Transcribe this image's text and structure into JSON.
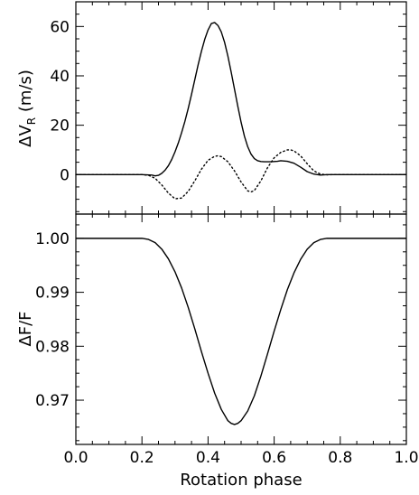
{
  "chart_data": [
    {
      "type": "line",
      "panel": "top",
      "ylabel": "ΔV",
      "ylabel_subscript": "R",
      "ylabel_unit": " (m/s)",
      "xlim": [
        0.0,
        1.0
      ],
      "ylim": [
        -16,
        70
      ],
      "yticks": [
        0,
        20,
        40,
        60
      ],
      "ytick_labels": [
        "0",
        "20",
        "40",
        "60"
      ],
      "series": [
        {
          "style": "solid",
          "x": [
            0.0,
            0.2,
            0.23,
            0.24,
            0.25,
            0.26,
            0.27,
            0.28,
            0.29,
            0.3,
            0.31,
            0.32,
            0.33,
            0.34,
            0.35,
            0.36,
            0.37,
            0.38,
            0.39,
            0.4,
            0.41,
            0.42,
            0.43,
            0.44,
            0.45,
            0.46,
            0.47,
            0.48,
            0.49,
            0.5,
            0.51,
            0.52,
            0.53,
            0.54,
            0.55,
            0.56,
            0.57,
            0.58,
            0.59,
            0.6,
            0.61,
            0.62,
            0.64,
            0.66,
            0.68,
            0.7,
            0.72,
            0.74,
            0.76,
            0.78,
            0.8,
            1.0
          ],
          "y": [
            0,
            0,
            -0.2,
            -0.5,
            -0.3,
            0.5,
            1.8,
            3.6,
            6.1,
            9.2,
            12.8,
            17.0,
            21.6,
            26.8,
            32.5,
            38.5,
            44.5,
            50.0,
            54.8,
            58.6,
            61.2,
            61.6,
            60.4,
            57.8,
            53.6,
            48.0,
            41.5,
            34.6,
            27.7,
            21.2,
            15.6,
            11.3,
            8.3,
            6.5,
            5.6,
            5.3,
            5.2,
            5.2,
            5.2,
            5.3,
            5.4,
            5.6,
            5.4,
            4.6,
            3.0,
            1.2,
            0.2,
            -0.2,
            0,
            0,
            0,
            0
          ]
        },
        {
          "style": "dotted",
          "x": [
            0.0,
            0.2,
            0.22,
            0.24,
            0.26,
            0.28,
            0.3,
            0.32,
            0.34,
            0.36,
            0.38,
            0.4,
            0.42,
            0.43,
            0.44,
            0.46,
            0.48,
            0.5,
            0.52,
            0.53,
            0.54,
            0.56,
            0.58,
            0.6,
            0.62,
            0.64,
            0.65,
            0.66,
            0.68,
            0.7,
            0.72,
            0.74,
            0.76,
            0.78,
            0.8,
            1.0
          ],
          "y": [
            0,
            0,
            -0.3,
            -1.5,
            -4.2,
            -7.5,
            -9.8,
            -9.5,
            -6.8,
            -2.5,
            2.2,
            5.8,
            7.4,
            7.6,
            7.3,
            5.2,
            1.5,
            -3.0,
            -6.6,
            -7.0,
            -6.5,
            -2.5,
            2.8,
            6.8,
            9.0,
            10.0,
            10.0,
            9.6,
            7.6,
            4.4,
            1.5,
            0.2,
            -0.1,
            0,
            0,
            0
          ]
        }
      ]
    },
    {
      "type": "line",
      "panel": "bottom",
      "xlabel": "Rotation phase",
      "ylabel": "ΔF/F",
      "xlim": [
        0.0,
        1.0
      ],
      "ylim": [
        0.9618,
        1.0045
      ],
      "xticks": [
        0.0,
        0.2,
        0.4,
        0.6,
        0.8,
        1.0
      ],
      "xtick_labels": [
        "0.0",
        "0.2",
        "0.4",
        "0.6",
        "0.8",
        "1.0"
      ],
      "yticks": [
        0.97,
        0.98,
        0.99,
        1.0
      ],
      "ytick_labels": [
        "0.97",
        "0.98",
        "0.99",
        "1.00"
      ],
      "series": [
        {
          "style": "solid",
          "x": [
            0.0,
            0.2,
            0.22,
            0.24,
            0.26,
            0.28,
            0.3,
            0.32,
            0.34,
            0.36,
            0.38,
            0.4,
            0.42,
            0.44,
            0.46,
            0.47,
            0.48,
            0.49,
            0.5,
            0.52,
            0.54,
            0.56,
            0.58,
            0.6,
            0.62,
            0.64,
            0.66,
            0.68,
            0.7,
            0.72,
            0.74,
            0.76,
            0.78,
            1.0
          ],
          "y": [
            1.0,
            1.0,
            0.9998,
            0.9992,
            0.998,
            0.9962,
            0.9938,
            0.9908,
            0.9872,
            0.9832,
            0.979,
            0.975,
            0.9713,
            0.9683,
            0.9662,
            0.9657,
            0.9655,
            0.9657,
            0.9662,
            0.968,
            0.9708,
            0.9745,
            0.9786,
            0.9828,
            0.9868,
            0.9905,
            0.9936,
            0.9961,
            0.998,
            0.9992,
            0.9998,
            1.0,
            1.0,
            1.0
          ]
        }
      ]
    }
  ]
}
